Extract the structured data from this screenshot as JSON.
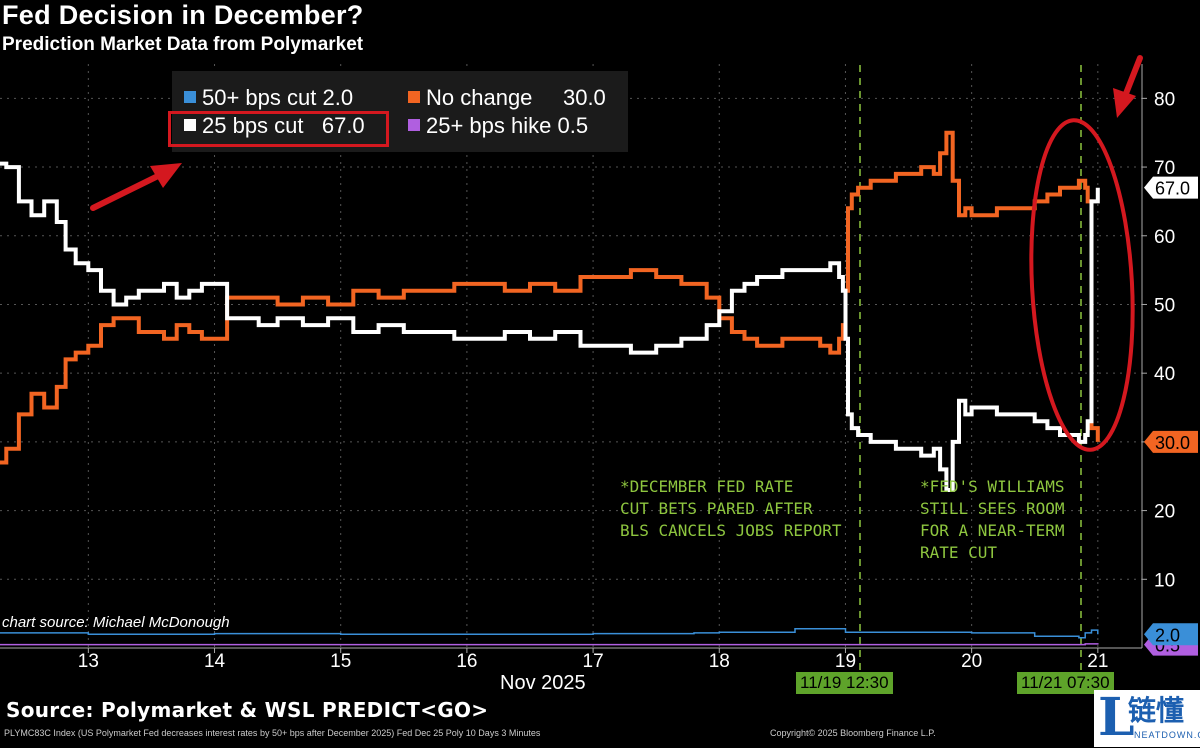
{
  "header": {
    "title": "Fed Decision in December?",
    "subtitle": "Prediction Market Data from Polymarket"
  },
  "legend": {
    "item1": "50+ bps cut 2.0",
    "item2": "No change     30.0",
    "item3": "25 bps cut   67.0",
    "item4": "25+ bps hike 0.5"
  },
  "annotations": {
    "note1": "*DECEMBER FED RATE\nCUT BETS PARED AFTER\nBLS CANCELS JOBS REPORT",
    "note2": "*FED'S WILLIAMS\nSTILL SEES ROOM\nFOR A NEAR-TERM\nRATE CUT",
    "tag1": "11/19 12:30",
    "tag2": "11/21 07:30",
    "chart_source": "chart source: Michael McDonough",
    "month_label": "Nov 2025"
  },
  "footer": {
    "source": "Source: Polymarket & WSL PREDICT<GO>",
    "index_line": "PLYMC83C Index (US Polymarket Fed decreases interest rates by 50+ bps after December 2025) Fed Dec 25 Poly 10 Days 3 Minutes",
    "copyright": "Copyright© 2025 Bloomberg Finance L.P."
  },
  "watermark": {
    "text": "链懂",
    "sub": "NEATDOWN.COM"
  },
  "colors": {
    "cut25": "#ffffff",
    "no_change": "#f26522",
    "cut50": "#3a8fd8",
    "hike25": "#b05fe0",
    "note": "#8ec63f",
    "highlight": "#d4181f"
  },
  "chart_data": {
    "type": "line",
    "title": "Fed Decision in December?",
    "xlabel": "Nov 2025",
    "ylabel": "",
    "ylim": [
      0,
      85
    ],
    "xlim": [
      12.3,
      21.35
    ],
    "yticks": [
      10,
      20,
      30,
      40,
      50,
      60,
      70,
      80
    ],
    "xticks": [
      13,
      14,
      15,
      16,
      17,
      18,
      19,
      20,
      21
    ],
    "last_values": {
      "cut25": "67.0",
      "no_change": "30.0",
      "cut50": "2.0",
      "hike25": "0.5"
    },
    "series": [
      {
        "name": "25 bps cut",
        "key": "cut25",
        "x": [
          12.3,
          12.35,
          12.45,
          12.55,
          12.65,
          12.75,
          12.82,
          12.9,
          13.0,
          13.1,
          13.2,
          13.3,
          13.4,
          13.5,
          13.6,
          13.7,
          13.8,
          13.9,
          14.0,
          14.1,
          14.2,
          14.35,
          14.5,
          14.7,
          14.9,
          15.1,
          15.3,
          15.5,
          15.7,
          15.9,
          16.1,
          16.3,
          16.5,
          16.7,
          16.9,
          17.1,
          17.3,
          17.5,
          17.7,
          17.9,
          18.0,
          18.1,
          18.2,
          18.3,
          18.4,
          18.5,
          18.6,
          18.7,
          18.8,
          18.88,
          18.95,
          18.98,
          19.0,
          19.02,
          19.05,
          19.1,
          19.2,
          19.3,
          19.4,
          19.5,
          19.6,
          19.7,
          19.75,
          19.8,
          19.85,
          19.9,
          19.95,
          20.0,
          20.1,
          20.2,
          20.3,
          20.4,
          20.5,
          20.6,
          20.7,
          20.8,
          20.85,
          20.88,
          20.9,
          20.92,
          20.95,
          21.0
        ],
        "values": [
          70.5,
          70,
          65,
          63,
          65,
          62,
          58,
          56,
          55,
          52,
          50,
          51,
          52,
          52,
          53,
          51,
          52,
          53,
          53,
          48,
          48,
          47,
          48,
          47,
          48,
          46,
          47,
          46,
          46,
          45,
          45,
          46,
          45,
          46,
          44,
          44,
          43,
          44,
          45,
          47,
          49,
          52,
          53,
          54,
          54,
          55,
          55,
          55,
          55,
          56,
          54,
          52,
          45,
          34,
          32,
          31,
          30,
          30,
          29,
          29,
          28,
          29,
          26,
          23,
          30,
          36,
          34,
          35,
          35,
          34,
          34,
          34,
          33,
          32,
          31,
          31,
          30,
          30,
          31,
          33,
          65,
          67
        ]
      },
      {
        "name": "No change",
        "key": "no_change",
        "x": [
          12.3,
          12.35,
          12.45,
          12.55,
          12.65,
          12.75,
          12.82,
          12.9,
          13.0,
          13.1,
          13.2,
          13.3,
          13.4,
          13.5,
          13.6,
          13.7,
          13.8,
          13.9,
          14.0,
          14.1,
          14.2,
          14.35,
          14.5,
          14.7,
          14.9,
          15.1,
          15.3,
          15.5,
          15.7,
          15.9,
          16.1,
          16.3,
          16.5,
          16.7,
          16.9,
          17.1,
          17.3,
          17.5,
          17.7,
          17.9,
          18.0,
          18.1,
          18.2,
          18.3,
          18.4,
          18.5,
          18.6,
          18.7,
          18.8,
          18.88,
          18.95,
          18.98,
          19.0,
          19.02,
          19.05,
          19.1,
          19.2,
          19.3,
          19.4,
          19.5,
          19.6,
          19.7,
          19.75,
          19.8,
          19.85,
          19.9,
          19.95,
          20.0,
          20.1,
          20.2,
          20.3,
          20.4,
          20.5,
          20.6,
          20.7,
          20.8,
          20.85,
          20.88,
          20.9,
          20.92,
          20.95,
          21.0
        ],
        "values": [
          27,
          29,
          34,
          37,
          35,
          38,
          42,
          43,
          44,
          47,
          48,
          48,
          46,
          46,
          45,
          47,
          46,
          45,
          45,
          51,
          51,
          51,
          50,
          51,
          50,
          52,
          51,
          52,
          52,
          53,
          53,
          52,
          53,
          52,
          54,
          54,
          55,
          54,
          53,
          51,
          48,
          46,
          45,
          44,
          44,
          45,
          45,
          45,
          44,
          43,
          45,
          47,
          52,
          64,
          66,
          67,
          68,
          68,
          69,
          69,
          70,
          69,
          72,
          75,
          68,
          63,
          64,
          63,
          63,
          64,
          64,
          64,
          65,
          66,
          67,
          67,
          68,
          68,
          67,
          65,
          32,
          30
        ]
      },
      {
        "name": "50+ bps cut",
        "key": "cut50",
        "x": [
          12.3,
          13.0,
          14.0,
          15.0,
          16.0,
          17.0,
          17.8,
          18.0,
          18.5,
          18.6,
          19.0,
          19.5,
          20.0,
          20.5,
          20.85,
          20.9,
          20.95,
          21.0
        ],
        "values": [
          2.2,
          2.0,
          2.1,
          2.0,
          2.0,
          2.1,
          2.2,
          2.3,
          2.3,
          2.8,
          2.3,
          2.3,
          2.2,
          1.7,
          1.5,
          2.2,
          2.6,
          2.0
        ]
      },
      {
        "name": "25+ bps hike",
        "key": "hike25",
        "x": [
          12.3,
          13.0,
          14.0,
          15.0,
          16.0,
          17.0,
          18.0,
          19.0,
          20.0,
          20.9,
          21.0
        ],
        "values": [
          0.5,
          0.5,
          0.5,
          0.5,
          0.5,
          0.5,
          0.5,
          0.5,
          0.5,
          0.6,
          0.5
        ]
      }
    ]
  }
}
